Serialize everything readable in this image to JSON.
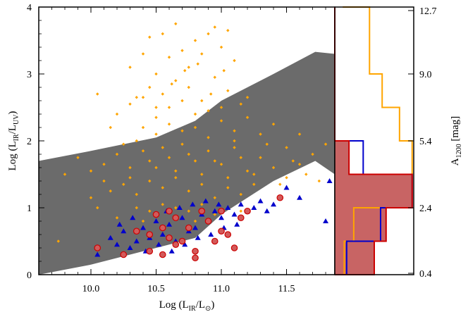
{
  "chart_data": [
    {
      "type": "scatter",
      "xlabel": "Log (L_IR/L_⊙)",
      "ylabel": "Log (L_IR/L_UV)",
      "xlim": [
        9.6,
        11.87
      ],
      "ylim": [
        0,
        4
      ],
      "x_ticks": [
        "10.0",
        "10.5",
        "11.0",
        "11.5"
      ],
      "y_ticks": [
        "0",
        "1",
        "2",
        "3",
        "4"
      ],
      "grid": false,
      "colors": {
        "band": "#6b6b6b",
        "orange": "#ffa500",
        "blue": "#0000cc",
        "red_fill": "#d25a5a",
        "red_edge": "#cc0000"
      },
      "band": {
        "upper": [
          [
            9.6,
            1.7
          ],
          [
            10.0,
            1.85
          ],
          [
            10.5,
            2.05
          ],
          [
            10.8,
            2.3
          ],
          [
            11.0,
            2.6
          ],
          [
            11.4,
            3.0
          ],
          [
            11.72,
            3.33
          ],
          [
            11.87,
            3.3
          ]
        ],
        "lower": [
          [
            9.6,
            0.0
          ],
          [
            10.0,
            0.15
          ],
          [
            10.5,
            0.4
          ],
          [
            10.8,
            0.55
          ],
          [
            11.0,
            0.9
          ],
          [
            11.4,
            1.4
          ],
          [
            11.72,
            1.7
          ],
          [
            11.87,
            1.5
          ]
        ]
      },
      "series": [
        {
          "marker": "diamond",
          "color": "#ffa500",
          "points": [
            [
              10.05,
              2.7
            ],
            [
              10.15,
              2.2
            ],
            [
              10.2,
              2.4
            ],
            [
              10.3,
              3.1
            ],
            [
              10.35,
              2.65
            ],
            [
              10.4,
              3.3
            ],
            [
              10.45,
              3.55
            ],
            [
              10.5,
              3.0
            ],
            [
              10.55,
              3.6
            ],
            [
              10.6,
              3.25
            ],
            [
              10.65,
              3.75
            ],
            [
              10.7,
              3.35
            ],
            [
              10.75,
              3.1
            ],
            [
              10.8,
              3.5
            ],
            [
              10.85,
              3.3
            ],
            [
              10.9,
              3.6
            ],
            [
              10.95,
              3.7
            ],
            [
              11.0,
              3.4
            ],
            [
              11.05,
              3.65
            ],
            [
              11.1,
              3.2
            ],
            [
              10.45,
              2.8
            ],
            [
              10.55,
              2.7
            ],
            [
              10.65,
              2.9
            ],
            [
              10.75,
              2.8
            ],
            [
              10.85,
              2.6
            ],
            [
              10.95,
              2.95
            ],
            [
              11.05,
              2.75
            ],
            [
              11.15,
              2.55
            ],
            [
              10.3,
              2.55
            ],
            [
              10.4,
              2.2
            ],
            [
              10.5,
              2.35
            ],
            [
              10.6,
              2.5
            ],
            [
              10.7,
              2.6
            ],
            [
              10.8,
              2.2
            ],
            [
              10.9,
              2.45
            ],
            [
              11.0,
              2.3
            ],
            [
              11.1,
              2.15
            ],
            [
              11.2,
              2.35
            ],
            [
              11.3,
              2.1
            ],
            [
              11.4,
              2.25
            ],
            [
              11.5,
              1.9
            ],
            [
              11.6,
              2.1
            ],
            [
              11.7,
              1.8
            ],
            [
              11.8,
              1.95
            ],
            [
              9.8,
              1.5
            ],
            [
              9.9,
              1.75
            ],
            [
              10.0,
              1.55
            ],
            [
              10.1,
              1.65
            ],
            [
              10.2,
              1.8
            ],
            [
              10.3,
              1.45
            ],
            [
              10.4,
              1.85
            ],
            [
              10.5,
              1.6
            ],
            [
              10.6,
              1.75
            ],
            [
              10.7,
              1.95
            ],
            [
              10.8,
              1.7
            ],
            [
              10.9,
              1.85
            ],
            [
              11.0,
              1.65
            ],
            [
              11.1,
              1.9
            ],
            [
              11.2,
              1.55
            ],
            [
              11.3,
              1.75
            ],
            [
              11.4,
              1.6
            ],
            [
              11.5,
              1.45
            ],
            [
              11.6,
              1.65
            ],
            [
              10.15,
              1.25
            ],
            [
              10.25,
              1.35
            ],
            [
              10.35,
              1.2
            ],
            [
              10.45,
              1.4
            ],
            [
              10.55,
              1.3
            ],
            [
              10.65,
              1.45
            ],
            [
              10.75,
              1.25
            ],
            [
              10.85,
              1.35
            ],
            [
              10.95,
              1.15
            ],
            [
              11.05,
              1.3
            ],
            [
              11.15,
              1.2
            ],
            [
              11.25,
              1.35
            ],
            [
              10.35,
              1.0
            ],
            [
              10.45,
              0.95
            ],
            [
              10.55,
              1.05
            ],
            [
              10.65,
              1.0
            ],
            [
              10.75,
              0.95
            ],
            [
              10.85,
              1.05
            ],
            [
              10.95,
              0.9
            ],
            [
              11.05,
              1.0
            ],
            [
              11.15,
              0.95
            ],
            [
              9.75,
              0.5
            ],
            [
              10.2,
              0.85
            ],
            [
              10.4,
              0.8
            ],
            [
              10.6,
              0.75
            ],
            [
              10.8,
              0.8
            ],
            [
              11.0,
              0.85
            ],
            [
              10.5,
              2.1
            ],
            [
              10.7,
              2.15
            ],
            [
              10.9,
              2.05
            ],
            [
              11.1,
              2.0
            ],
            [
              10.25,
              1.95
            ],
            [
              10.45,
              1.7
            ],
            [
              10.65,
              1.55
            ],
            [
              10.85,
              1.5
            ],
            [
              11.05,
              1.45
            ],
            [
              11.25,
              1.5
            ],
            [
              11.45,
              1.35
            ],
            [
              11.35,
              1.95
            ],
            [
              11.55,
              1.7
            ],
            [
              11.65,
              1.5
            ],
            [
              11.75,
              1.4
            ],
            [
              10.1,
              1.4
            ],
            [
              10.0,
              1.15
            ],
            [
              10.05,
              1.0
            ],
            [
              10.3,
              1.6
            ],
            [
              10.55,
              1.9
            ],
            [
              10.75,
              1.8
            ],
            [
              10.95,
              1.7
            ],
            [
              11.15,
              1.75
            ],
            [
              10.35,
              2.0
            ],
            [
              10.6,
              2.25
            ],
            [
              10.8,
              2.4
            ],
            [
              11.0,
              2.5
            ],
            [
              11.2,
              2.65
            ],
            [
              10.4,
              2.65
            ],
            [
              10.5,
              2.5
            ],
            [
              10.62,
              2.85
            ],
            [
              10.72,
              3.05
            ],
            [
              10.82,
              3.15
            ],
            [
              10.92,
              2.7
            ],
            [
              11.02,
              3.05
            ]
          ]
        },
        {
          "marker": "triangle",
          "color": "#0000cc",
          "points": [
            [
              10.05,
              0.3
            ],
            [
              10.15,
              0.55
            ],
            [
              10.2,
              0.45
            ],
            [
              10.25,
              0.65
            ],
            [
              10.3,
              0.4
            ],
            [
              10.35,
              0.5
            ],
            [
              10.4,
              0.7
            ],
            [
              10.45,
              0.55
            ],
            [
              10.5,
              0.8
            ],
            [
              10.55,
              0.6
            ],
            [
              10.6,
              0.75
            ],
            [
              10.65,
              0.5
            ],
            [
              10.7,
              0.85
            ],
            [
              10.75,
              0.65
            ],
            [
              10.8,
              0.7
            ],
            [
              10.85,
              0.9
            ],
            [
              10.9,
              0.8
            ],
            [
              10.95,
              0.95
            ],
            [
              11.0,
              0.85
            ],
            [
              11.05,
              1.0
            ],
            [
              11.1,
              0.9
            ],
            [
              11.15,
              1.05
            ],
            [
              11.2,
              0.95
            ],
            [
              11.25,
              1.0
            ],
            [
              11.3,
              1.1
            ],
            [
              11.35,
              0.95
            ],
            [
              11.4,
              1.05
            ],
            [
              11.5,
              1.3
            ],
            [
              11.6,
              1.15
            ],
            [
              11.8,
              0.8
            ],
            [
              11.83,
              1.4
            ],
            [
              10.42,
              0.35
            ],
            [
              10.52,
              0.45
            ],
            [
              10.62,
              0.35
            ],
            [
              10.72,
              0.45
            ],
            [
              10.82,
              0.55
            ],
            [
              10.92,
              0.6
            ],
            [
              11.02,
              0.7
            ],
            [
              11.12,
              0.75
            ],
            [
              10.58,
              0.95
            ],
            [
              10.68,
              1.0
            ],
            [
              10.78,
              1.05
            ],
            [
              10.88,
              1.1
            ],
            [
              10.98,
              1.05
            ],
            [
              10.32,
              0.85
            ],
            [
              10.22,
              0.75
            ]
          ]
        },
        {
          "marker": "circle",
          "color": "#d25a5a",
          "points": [
            [
              10.05,
              0.4
            ],
            [
              10.25,
              0.3
            ],
            [
              10.35,
              0.65
            ],
            [
              10.45,
              0.6
            ],
            [
              10.45,
              0.35
            ],
            [
              10.5,
              0.9
            ],
            [
              10.55,
              0.7
            ],
            [
              10.55,
              0.3
            ],
            [
              10.6,
              0.55
            ],
            [
              10.65,
              0.85
            ],
            [
              10.65,
              0.45
            ],
            [
              10.7,
              0.5
            ],
            [
              10.75,
              0.7
            ],
            [
              10.8,
              0.35
            ],
            [
              10.8,
              0.25
            ],
            [
              10.85,
              0.95
            ],
            [
              10.95,
              0.5
            ],
            [
              11.0,
              0.65
            ],
            [
              11.0,
              0.95
            ],
            [
              11.05,
              0.6
            ],
            [
              11.1,
              0.4
            ],
            [
              11.15,
              0.85
            ],
            [
              11.2,
              0.95
            ],
            [
              11.45,
              1.15
            ],
            [
              10.6,
              0.95
            ],
            [
              10.9,
              0.8
            ]
          ]
        }
      ]
    },
    {
      "type": "histogram",
      "orientation": "horizontal",
      "right_axis_label": "A_1200 [mag]",
      "right_ticks": [
        "0.4",
        "2.4",
        "5.4",
        "9.0",
        "12.7"
      ],
      "colors": {
        "orange": "#ffa500",
        "blue": "#0000cc",
        "red_edge": "#cc0000",
        "red_fill": "#c86464"
      },
      "bins": [
        0,
        0.25,
        0.5,
        1.0,
        1.5,
        2.0,
        2.5,
        3.0,
        4.0
      ],
      "series": [
        {
          "name": "",
          "color": "#ffa500",
          "fill": false,
          "counts": [
            0.12,
            0.12,
            0.24,
            0.98,
            0.98,
            0.82,
            0.6,
            0.44,
            0.1
          ]
        },
        {
          "name": "",
          "color": "#0000cc",
          "fill": false,
          "counts": [
            0.15,
            0.15,
            0.58,
            0.98,
            0.36,
            0.0,
            0.0,
            0.0,
            0.0
          ]
        },
        {
          "name": "",
          "color": "#cc0000",
          "fill": true,
          "counts": [
            0.5,
            0.5,
            0.65,
            0.98,
            0.18,
            0.0,
            0.0,
            0.0,
            0.0
          ]
        }
      ]
    }
  ]
}
